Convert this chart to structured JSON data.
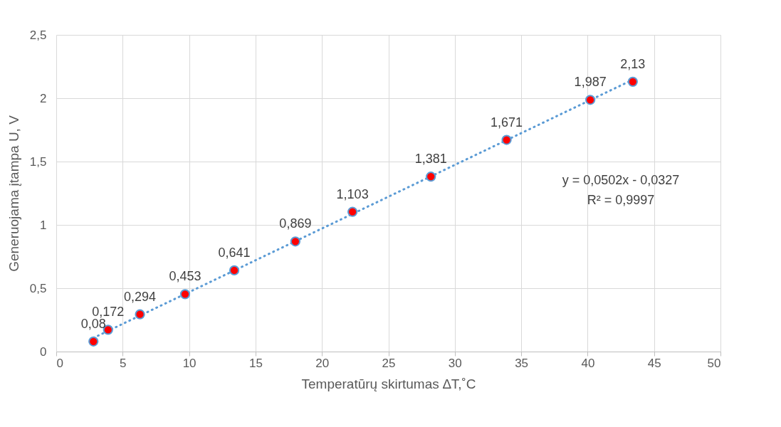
{
  "chart_data": {
    "type": "scatter",
    "xlabel": "Temperatūrų skirtumas ∆T,˚C",
    "ylabel": "Generuojama įtampa U, V",
    "x": [
      2.8,
      3.9,
      6.3,
      9.7,
      13.4,
      18.0,
      22.3,
      28.2,
      33.9,
      40.2,
      43.4
    ],
    "series": [
      {
        "color": "#ff0000",
        "marker": "circle",
        "values": [
          0.08,
          0.172,
          0.294,
          0.453,
          0.641,
          0.869,
          1.103,
          1.381,
          1.671,
          1.987,
          2.13
        ],
        "value_labels": [
          "0,08",
          "0,172",
          "0,294",
          "0,453",
          "0,641",
          "0,869",
          "1,103",
          "1,381",
          "1,671",
          "1,987",
          "2,13"
        ]
      },
      {
        "type": "line",
        "color": "#5b9bd5",
        "line_style": "dotted",
        "x": [
          2.8,
          43.4
        ],
        "values": [
          0.108,
          2.146
        ]
      }
    ],
    "annotations": [
      "y = 0,0502x - 0,0327",
      "R² = 0,9997"
    ],
    "xlim": [
      0,
      50
    ],
    "xticks": [
      0,
      5,
      10,
      15,
      20,
      25,
      30,
      35,
      40,
      45,
      50
    ],
    "ylim": [
      0,
      2.5
    ],
    "yticks": [
      0,
      {
        "value": 0.5,
        "label": "0,5"
      },
      1,
      {
        "value": 1.5,
        "label": "1,5"
      },
      2,
      {
        "value": 2.5,
        "label": "2,5"
      }
    ],
    "grid": true
  }
}
